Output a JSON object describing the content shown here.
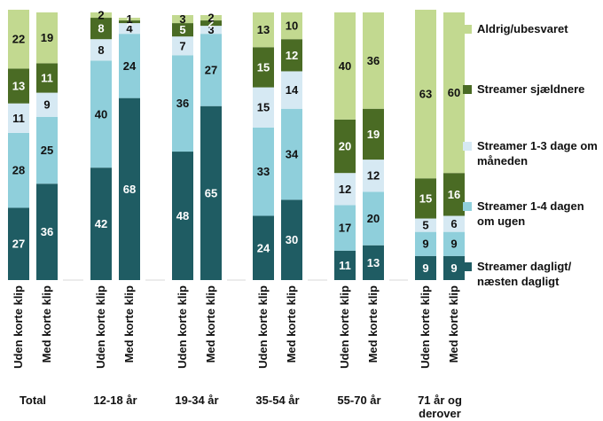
{
  "chart_data": {
    "type": "bar",
    "stacked": true,
    "orientation": "vertical",
    "groups": [
      {
        "label": "Total",
        "bars": [
          "Uden korte klip",
          "Med korte klip"
        ]
      },
      {
        "label": "12-18 år",
        "bars": [
          "Uden korte klip",
          "Med korte klip"
        ]
      },
      {
        "label": "19-34 år",
        "bars": [
          "Uden korte klip",
          "Med korte klip"
        ]
      },
      {
        "label": "35-54 år",
        "bars": [
          "Uden korte klip",
          "Med korte klip"
        ]
      },
      {
        "label": "55-70 år",
        "bars": [
          "Uden korte klip",
          "Med korte klip"
        ]
      },
      {
        "label": "71 år og derover",
        "bars": [
          "Uden korte klip",
          "Med korte klip"
        ]
      }
    ],
    "series": [
      {
        "name": "Streamer dagligt/ næsten dagligt",
        "color": "#1f5c63",
        "values": [
          [
            27,
            36
          ],
          [
            42,
            68
          ],
          [
            48,
            65
          ],
          [
            24,
            30
          ],
          [
            11,
            13
          ],
          [
            9,
            9
          ]
        ]
      },
      {
        "name": "Streamer 1-4 dagen om ugen",
        "color": "#8fcfdb",
        "values": [
          [
            28,
            25
          ],
          [
            40,
            24
          ],
          [
            36,
            27
          ],
          [
            33,
            34
          ],
          [
            17,
            20
          ],
          [
            9,
            9
          ]
        ]
      },
      {
        "name": "Streamer 1-3 dage om måneden",
        "color": "#d6e9f3",
        "values": [
          [
            11,
            9
          ],
          [
            8,
            4
          ],
          [
            7,
            3
          ],
          [
            15,
            14
          ],
          [
            12,
            12
          ],
          [
            5,
            6
          ]
        ]
      },
      {
        "name": "Streamer sjældnere",
        "color": "#4a6b24",
        "values": [
          [
            13,
            11
          ],
          [
            8,
            1
          ],
          [
            5,
            2
          ],
          [
            15,
            12
          ],
          [
            20,
            19
          ],
          [
            15,
            16
          ]
        ]
      },
      {
        "name": "Aldrig/ubesvaret",
        "color": "#c2d990",
        "values": [
          [
            22,
            19
          ],
          [
            2,
            1
          ],
          [
            3,
            2
          ],
          [
            13,
            10
          ],
          [
            40,
            36
          ],
          [
            63,
            60
          ]
        ]
      }
    ],
    "ylim": [
      0,
      100
    ],
    "legend_position": "right",
    "grid": false
  }
}
